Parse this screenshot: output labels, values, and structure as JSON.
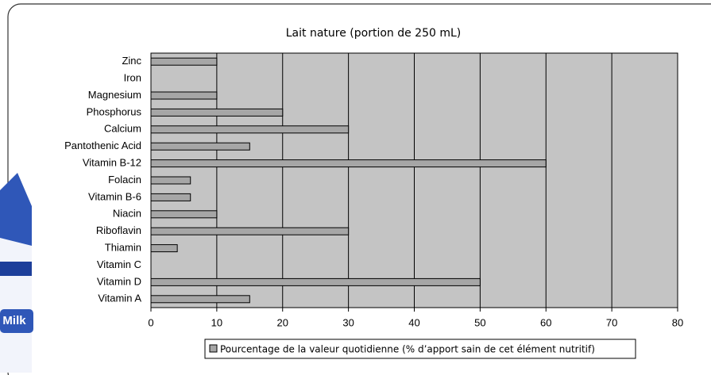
{
  "chart_data": {
    "type": "bar",
    "orientation": "horizontal",
    "title": "Lait nature (portion de 250 mL)",
    "categories": [
      "Zinc",
      "Iron",
      "Magnesium",
      "Phosphorus",
      "Calcium",
      "Pantothenic Acid",
      "Vitamin B-12",
      "Folacin",
      "Vitamin B-6",
      "Niacin",
      "Riboflavin",
      "Thiamin",
      "Vitamin C",
      "Vitamin D",
      "Vitamin A"
    ],
    "series": [
      {
        "name": "Pourcentage de la valeur quotidienne (% d’apport sain de cet élément nutritif)",
        "color": "#a6a6a6",
        "values": [
          10,
          0,
          10,
          20,
          30,
          15,
          60,
          6,
          6,
          10,
          30,
          4,
          0,
          50,
          15
        ]
      }
    ],
    "xlim": [
      0,
      80
    ],
    "xticks": [
      0,
      10,
      20,
      30,
      40,
      50,
      60,
      70,
      80
    ],
    "grid": true,
    "plot_background": "#c4c4c4"
  },
  "image_text": "Milk"
}
